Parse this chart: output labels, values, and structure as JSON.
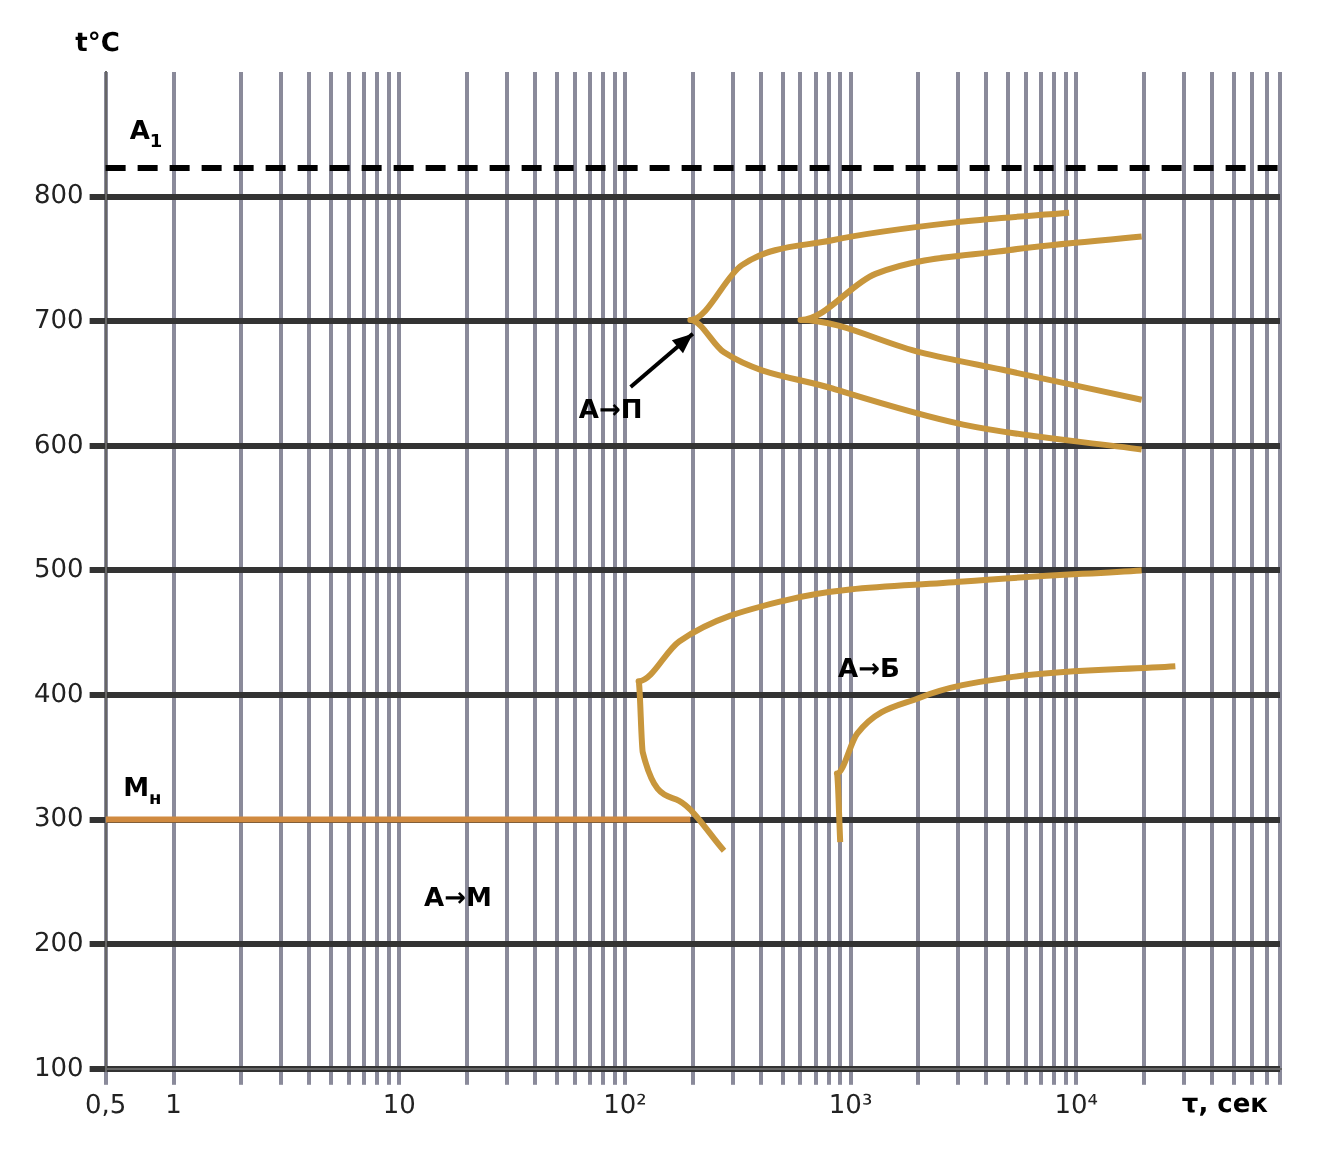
{
  "chart_data": {
    "type": "line",
    "xlabel": "τ, сек",
    "ylabel": "t°C",
    "log": "x",
    "grid": true,
    "legend": false,
    "marker": "none",
    "line_style": "solid",
    "xlim": [
      0.5,
      80000
    ],
    "ylim": [
      100,
      900
    ],
    "xticks": [
      {
        "value": 0.5,
        "label": "0,5"
      },
      1,
      {
        "value": 2,
        "label": null
      },
      {
        "value": 3,
        "label": null
      },
      {
        "value": 4,
        "label": null
      },
      {
        "value": 5,
        "label": null
      },
      {
        "value": 6,
        "label": null
      },
      {
        "value": 7,
        "label": null
      },
      {
        "value": 8,
        "label": null
      },
      {
        "value": 9,
        "label": null
      },
      10,
      {
        "value": 20,
        "label": null
      },
      {
        "value": 30,
        "label": null
      },
      {
        "value": 40,
        "label": null
      },
      {
        "value": 50,
        "label": null
      },
      {
        "value": 60,
        "label": null
      },
      {
        "value": 70,
        "label": null
      },
      {
        "value": 80,
        "label": null
      },
      {
        "value": 90,
        "label": null
      },
      {
        "value": 100,
        "label": "10²"
      },
      {
        "value": 200,
        "label": null
      },
      {
        "value": 300,
        "label": null
      },
      {
        "value": 400,
        "label": null
      },
      {
        "value": 500,
        "label": null
      },
      {
        "value": 600,
        "label": null
      },
      {
        "value": 700,
        "label": null
      },
      {
        "value": 800,
        "label": null
      },
      {
        "value": 900,
        "label": null
      },
      {
        "value": 1000,
        "label": "10³"
      },
      {
        "value": 2000,
        "label": null
      },
      {
        "value": 3000,
        "label": null
      },
      {
        "value": 4000,
        "label": null
      },
      {
        "value": 5000,
        "label": null
      },
      {
        "value": 6000,
        "label": null
      },
      {
        "value": 7000,
        "label": null
      },
      {
        "value": 8000,
        "label": null
      },
      {
        "value": 9000,
        "label": null
      },
      {
        "value": 10000,
        "label": "10⁴"
      },
      {
        "value": 20000,
        "label": null
      },
      {
        "value": 30000,
        "label": null
      },
      {
        "value": 40000,
        "label": null
      },
      {
        "value": 50000,
        "label": null
      },
      {
        "value": 60000,
        "label": null
      },
      {
        "value": 70000,
        "label": null
      },
      {
        "value": 80000,
        "label": null
      }
    ],
    "yticks": [
      100,
      200,
      300,
      400,
      500,
      600,
      700,
      800
    ],
    "series": [
      {
        "color": "#c8963c",
        "x": [
          9300,
          3160,
          830,
          330,
          195,
          275,
          830,
          3160,
          19500
        ],
        "values": [
          787,
          780,
          765,
          745,
          701,
          675,
          646,
          617,
          597
        ]
      },
      {
        "color": "#c8963c",
        "x": [
          19500,
          5000,
          1290,
          600,
          2040,
          5000,
          19500
        ],
        "values": [
          768,
          757,
          738,
          701,
          675,
          660,
          637
        ]
      },
      {
        "color": "#c8963c",
        "x": [
          19500,
          3160,
          515,
          174,
          115,
          120,
          174,
          275
        ],
        "values": [
          500,
          491,
          476,
          443,
          411,
          354,
          315,
          275
        ]
      },
      {
        "color": "#c8963c",
        "x": [
          27500,
          5000,
          2040,
          1070,
          870,
          900
        ],
        "values": [
          423,
          414,
          398,
          369,
          337,
          282
        ]
      },
      {
        "color": "#d08a40",
        "x": [
          0.5,
          195
        ],
        "values": [
          300,
          300
        ]
      }
    ],
    "ref_lines": [
      {
        "axis": "y",
        "value": 823,
        "label": "A$_{1}$",
        "color": "#000000",
        "line_style": "dashed"
      }
    ],
    "annotations": [
      "M$_{н}$",
      "A→M",
      {
        "text": "A→П",
        "x": 200,
        "y": 690
      },
      "A→Б"
    ]
  }
}
